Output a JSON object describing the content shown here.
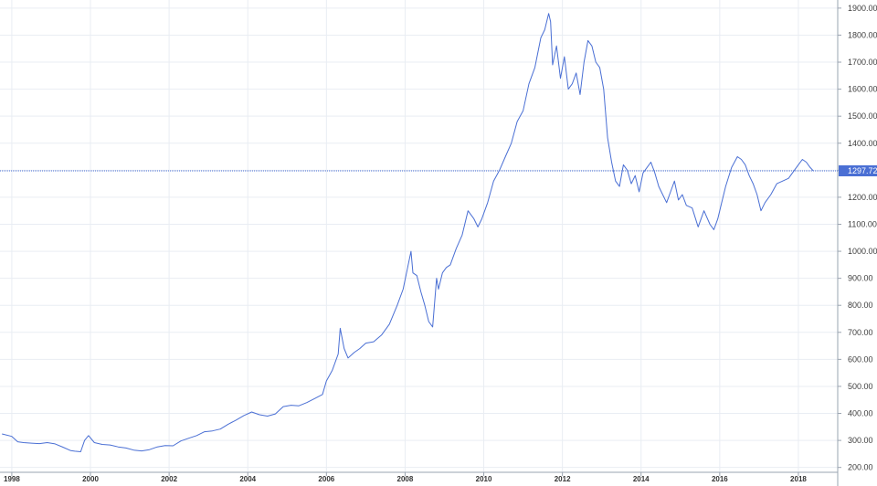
{
  "chart_data": {
    "type": "line",
    "title": "",
    "xlabel": "",
    "ylabel": "",
    "xlim": [
      1997.7,
      2019.0
    ],
    "ylim": [
      182,
      1930
    ],
    "y_ticks": [
      "200.00",
      "300.00",
      "400.00",
      "500.00",
      "600.00",
      "700.00",
      "800.00",
      "900.00",
      "1000.00",
      "1100.00",
      "1200.00",
      "1300.00",
      "1400.00",
      "1500.00",
      "1600.00",
      "1700.00",
      "1800.00",
      "1900.00"
    ],
    "x_ticks": [
      "1998",
      "2000",
      "2002",
      "2004",
      "2006",
      "2008",
      "2010",
      "2012",
      "2014",
      "2016",
      "2018"
    ],
    "current_value": 1297.72,
    "current_label": "1297.72",
    "grid": true,
    "series": [
      {
        "color": "#4a6fd4",
        "x": [
          1997.75,
          1998.0,
          1998.15,
          1998.3,
          1998.5,
          1998.7,
          1998.9,
          1999.1,
          1999.3,
          1999.5,
          1999.6,
          1999.75,
          1999.85,
          1999.95,
          2000.1,
          2000.3,
          2000.5,
          2000.7,
          2000.9,
          2001.1,
          2001.3,
          2001.5,
          2001.7,
          2001.9,
          2002.1,
          2002.3,
          2002.5,
          2002.7,
          2002.9,
          2003.1,
          2003.3,
          2003.5,
          2003.7,
          2003.9,
          2004.1,
          2004.3,
          2004.5,
          2004.7,
          2004.9,
          2005.1,
          2005.3,
          2005.5,
          2005.7,
          2005.9,
          2006.0,
          2006.15,
          2006.3,
          2006.35,
          2006.45,
          2006.55,
          2006.7,
          2006.85,
          2007.0,
          2007.2,
          2007.4,
          2007.6,
          2007.8,
          2007.95,
          2008.05,
          2008.15,
          2008.2,
          2008.3,
          2008.4,
          2008.5,
          2008.6,
          2008.7,
          2008.8,
          2008.85,
          2008.95,
          2009.05,
          2009.15,
          2009.3,
          2009.45,
          2009.6,
          2009.75,
          2009.85,
          2009.95,
          2010.1,
          2010.25,
          2010.4,
          2010.55,
          2010.7,
          2010.85,
          2011.0,
          2011.15,
          2011.3,
          2011.45,
          2011.55,
          2011.65,
          2011.7,
          2011.75,
          2011.85,
          2011.95,
          2012.05,
          2012.15,
          2012.25,
          2012.35,
          2012.45,
          2012.55,
          2012.65,
          2012.75,
          2012.85,
          2012.95,
          2013.05,
          2013.15,
          2013.25,
          2013.35,
          2013.45,
          2013.55,
          2013.65,
          2013.75,
          2013.85,
          2013.95,
          2014.05,
          2014.15,
          2014.25,
          2014.35,
          2014.45,
          2014.55,
          2014.65,
          2014.75,
          2014.85,
          2014.95,
          2015.05,
          2015.15,
          2015.3,
          2015.45,
          2015.6,
          2015.75,
          2015.85,
          2015.95,
          2016.05,
          2016.15,
          2016.3,
          2016.45,
          2016.55,
          2016.65,
          2016.75,
          2016.85,
          2016.95,
          2017.05,
          2017.15,
          2017.3,
          2017.45,
          2017.6,
          2017.75,
          2017.9,
          2018.0,
          2018.1,
          2018.2,
          2018.3,
          2018.38
        ],
        "y": [
          324,
          315,
          295,
          292,
          290,
          288,
          292,
          287,
          275,
          262,
          260,
          258,
          300,
          318,
          292,
          285,
          283,
          276,
          272,
          264,
          261,
          266,
          276,
          281,
          280,
          298,
          308,
          318,
          332,
          335,
          342,
          360,
          375,
          392,
          405,
          395,
          390,
          398,
          425,
          430,
          428,
          440,
          455,
          470,
          520,
          560,
          620,
          715,
          640,
          605,
          625,
          640,
          660,
          665,
          690,
          730,
          800,
          860,
          930,
          1000,
          920,
          910,
          850,
          800,
          740,
          720,
          900,
          860,
          920,
          940,
          950,
          1010,
          1060,
          1150,
          1120,
          1090,
          1120,
          1180,
          1260,
          1300,
          1350,
          1400,
          1480,
          1520,
          1620,
          1680,
          1790,
          1820,
          1880,
          1850,
          1690,
          1760,
          1640,
          1720,
          1600,
          1620,
          1660,
          1580,
          1700,
          1780,
          1760,
          1700,
          1680,
          1600,
          1420,
          1330,
          1260,
          1240,
          1320,
          1300,
          1250,
          1280,
          1220,
          1290,
          1310,
          1330,
          1290,
          1240,
          1210,
          1180,
          1220,
          1260,
          1190,
          1210,
          1170,
          1160,
          1090,
          1150,
          1100,
          1080,
          1120,
          1180,
          1240,
          1310,
          1350,
          1340,
          1320,
          1280,
          1250,
          1210,
          1150,
          1180,
          1210,
          1250,
          1260,
          1270,
          1300,
          1320,
          1340,
          1330,
          1310,
          1297.72
        ]
      }
    ]
  }
}
